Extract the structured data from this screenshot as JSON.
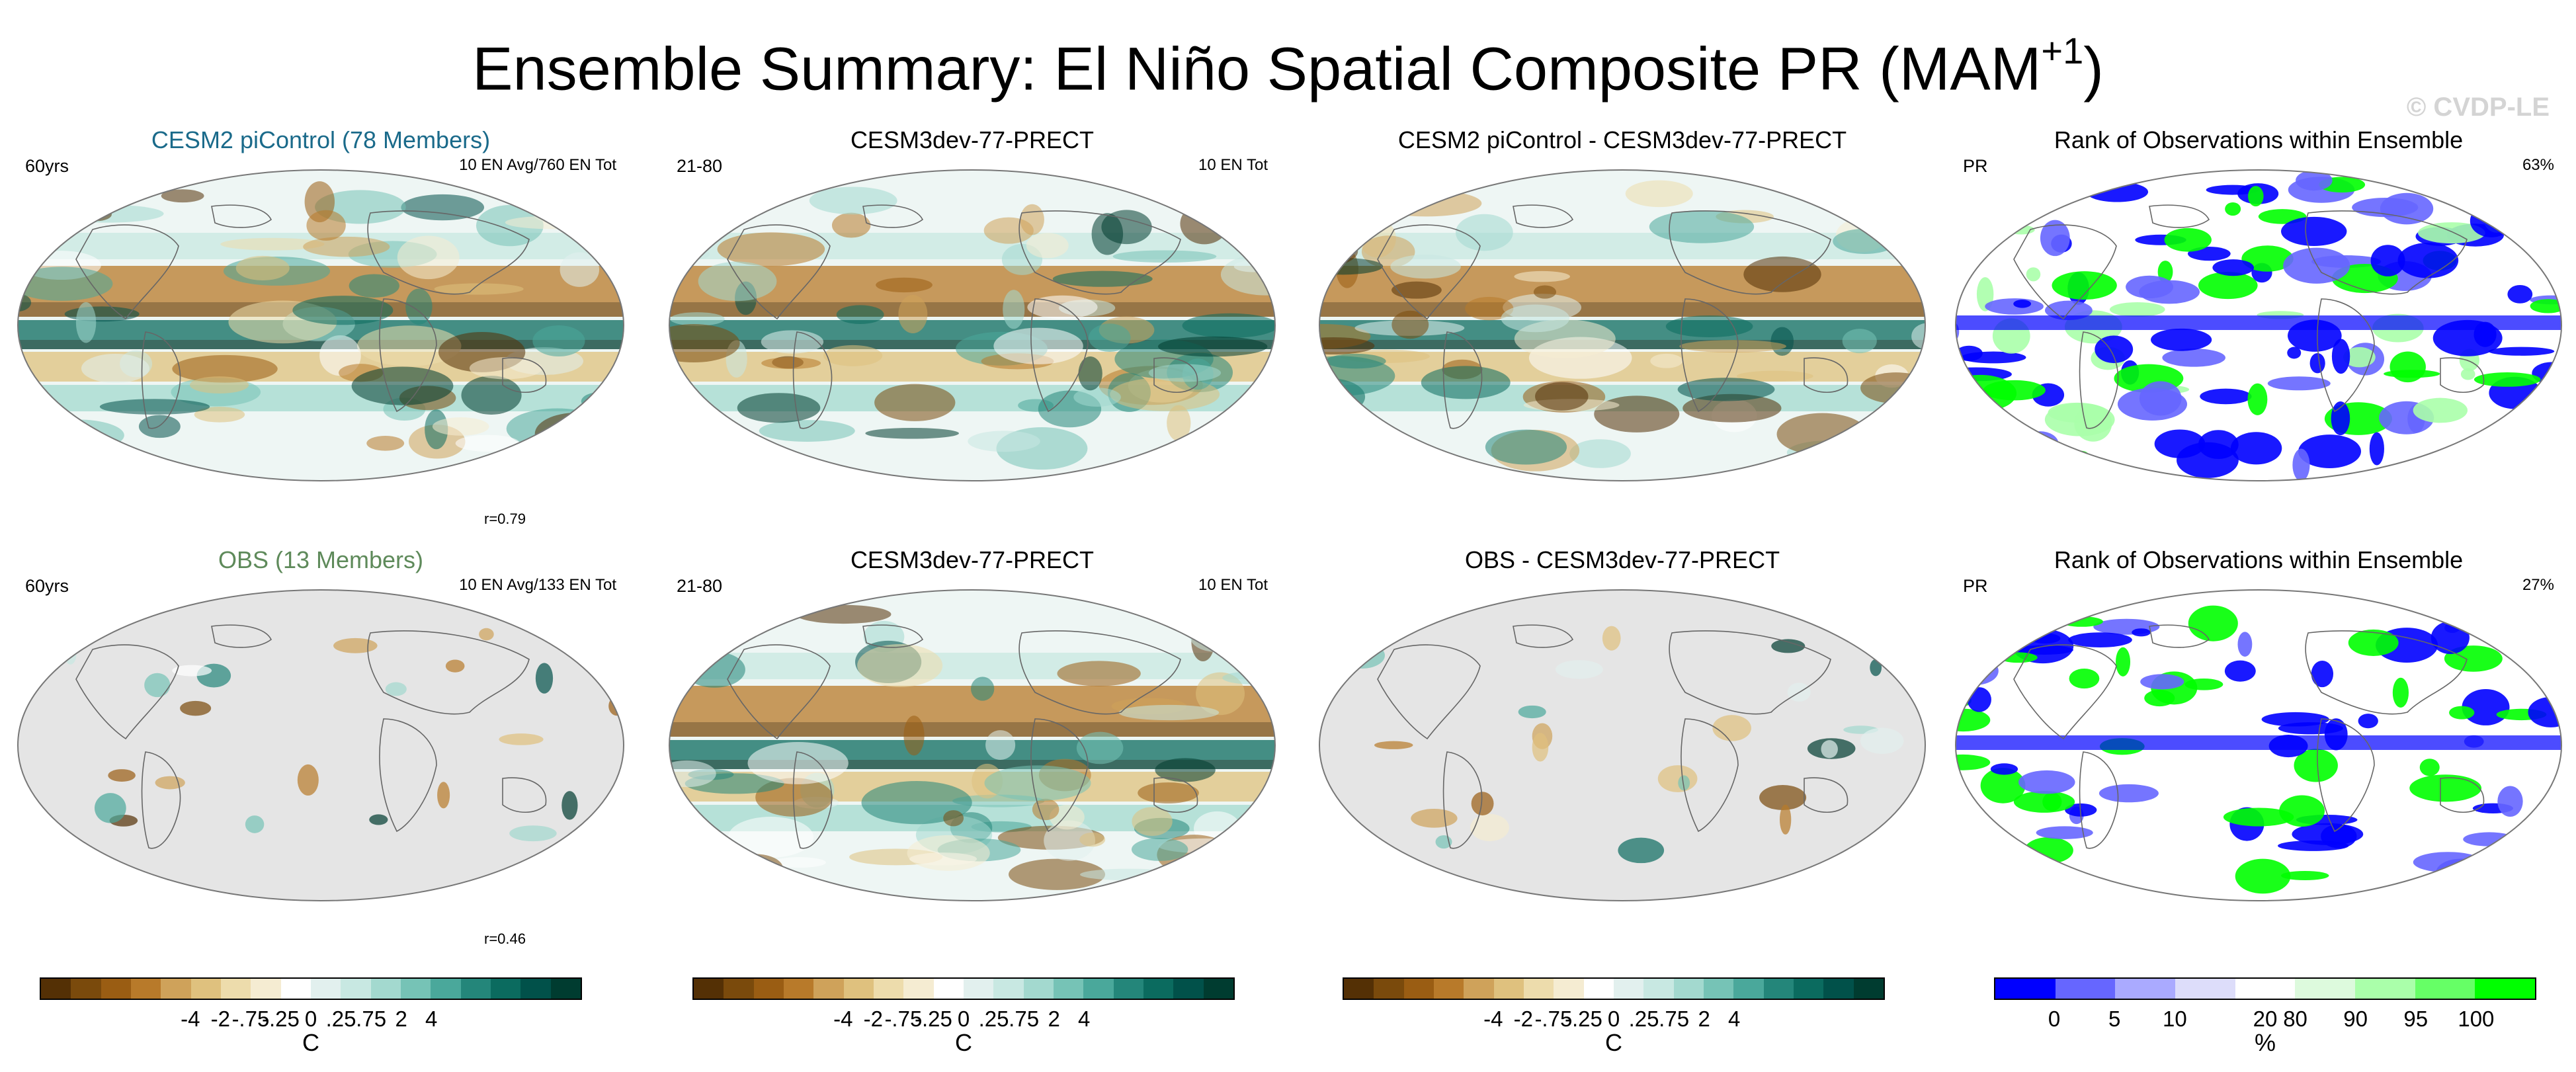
{
  "title": {
    "main": "Ensemble Summary: El Niño Spatial Composite PR (MAM",
    "sup": "+1",
    "close": ")"
  },
  "watermark": "© CVDP-LE",
  "colors": {
    "brown_to_teal": [
      "#543005",
      "#7a4a0c",
      "#9a5d13",
      "#b87a2a",
      "#cfa25a",
      "#dfc17e",
      "#eddcac",
      "#f5ecd2",
      "#ffffff",
      "#e2f0ee",
      "#c8e8e2",
      "#a3d9cf",
      "#76c3b6",
      "#4aa89b",
      "#24867a",
      "#0b6b5f",
      "#01514a",
      "#003c30"
    ],
    "rank": [
      "#0000ff",
      "#6666ff",
      "#aaaaff",
      "#ddddfa",
      "#ffffff",
      "#ddfadd",
      "#aaffaa",
      "#66ff66",
      "#00ff00"
    ],
    "land_mask": "#e5e5e5"
  },
  "panels": [
    {
      "title": "CESM2 piControl (78 Members)",
      "title_color": "#1a6a8a",
      "left_label": "60yrs",
      "right_label": "10 EN Avg/760 EN Tot",
      "corr": "r=0.79"
    },
    {
      "title": "CESM3dev-77-PRECT",
      "title_color": "#000000",
      "left_label": "21-80",
      "right_label": "10 EN Tot",
      "corr": ""
    },
    {
      "title": "CESM2 piControl - CESM3dev-77-PRECT",
      "title_color": "#000000",
      "left_label": "",
      "right_label": "",
      "corr": ""
    },
    {
      "title": "Rank of Observations within Ensemble",
      "title_color": "#000000",
      "left_label": "PR",
      "right_label": "63%",
      "corr": ""
    },
    {
      "title": "OBS (13 Members)",
      "title_color": "#5e8a5a",
      "left_label": "60yrs",
      "right_label": "10 EN Avg/133 EN Tot",
      "corr": "r=0.46"
    },
    {
      "title": "CESM3dev-77-PRECT",
      "title_color": "#000000",
      "left_label": "21-80",
      "right_label": "10 EN Tot",
      "corr": ""
    },
    {
      "title": "OBS - CESM3dev-77-PRECT",
      "title_color": "#000000",
      "left_label": "",
      "right_label": "",
      "corr": ""
    },
    {
      "title": "Rank of Observations within Ensemble",
      "title_color": "#000000",
      "left_label": "PR",
      "right_label": "27%",
      "corr": ""
    }
  ],
  "colorbars": {
    "anomaly": {
      "ticks": [
        "-4",
        "-2",
        "-.75",
        "-.25",
        "0",
        ".25",
        ".75",
        "2",
        "4"
      ],
      "unit": "C"
    },
    "rank": {
      "ticks": [
        "0",
        "5",
        "10",
        "20",
        "80",
        "90",
        "95",
        "100"
      ],
      "unit": "%"
    }
  },
  "chart_data": {
    "type": "heatmap",
    "title": "Ensemble Summary: El Niño Spatial Composite PR (MAM+1)",
    "projection": "Robinson-like global map, Pacific-centered",
    "anomaly_levels": [
      -4,
      -2,
      -0.75,
      -0.25,
      0,
      0.25,
      0.75,
      2,
      4
    ],
    "rank_levels": [
      0,
      5,
      10,
      20,
      80,
      90,
      95,
      100
    ],
    "anomaly_unit": "C",
    "rank_unit": "%",
    "summary_values": {
      "r_cesm2_picontrol": 0.79,
      "r_obs": 0.46,
      "rank_pct_top": 63,
      "rank_pct_bottom": 27
    }
  }
}
